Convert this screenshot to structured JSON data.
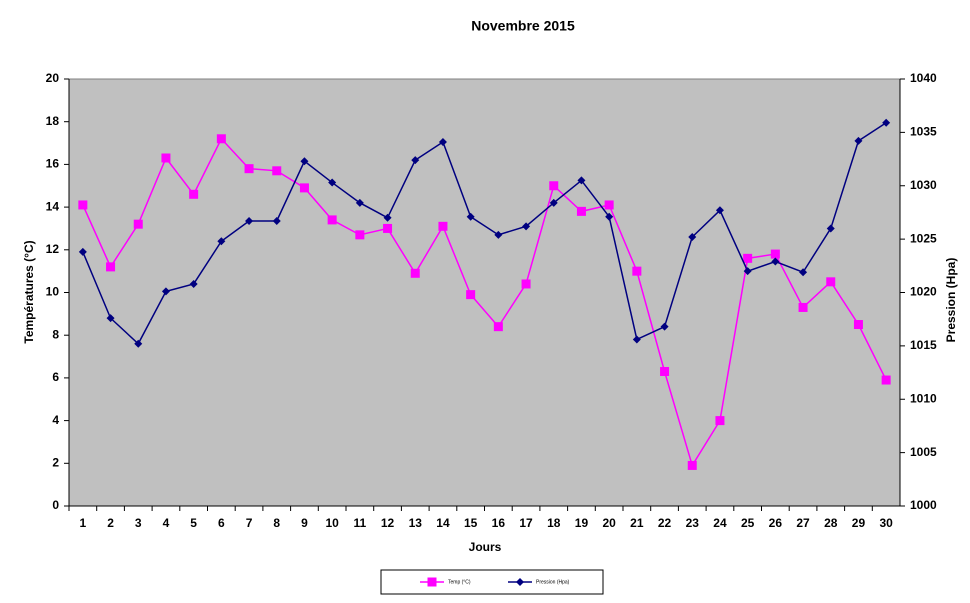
{
  "chart_data": {
    "type": "line",
    "title": "Novembre 2015",
    "x_label": "Jours",
    "y_label": "Températures (°C)",
    "y2_label": "Pression (Hpa)",
    "categories": [
      1,
      2,
      3,
      4,
      5,
      6,
      7,
      8,
      9,
      10,
      11,
      12,
      13,
      14,
      15,
      16,
      17,
      18,
      19,
      20,
      21,
      22,
      23,
      24,
      25,
      26,
      27,
      28,
      29,
      30
    ],
    "ylim": [
      0,
      20
    ],
    "yticks": [
      0,
      2,
      4,
      6,
      8,
      10,
      12,
      14,
      16,
      18,
      20
    ],
    "y2lim": [
      1000,
      1040
    ],
    "y2ticks": [
      1000,
      1005,
      1010,
      1015,
      1020,
      1025,
      1030,
      1035,
      1040
    ],
    "grid": false,
    "legend": "bottom",
    "series": [
      {
        "name": "Temp (°C)",
        "color": "#ff00ff",
        "marker": "square",
        "values": [
          14.1,
          11.2,
          13.2,
          16.3,
          14.6,
          17.2,
          15.8,
          15.7,
          14.9,
          13.4,
          12.7,
          13.0,
          10.9,
          13.1,
          9.9,
          8.4,
          10.4,
          15.0,
          13.8,
          14.1,
          11.0,
          6.3,
          1.9,
          4.0,
          11.6,
          11.8,
          9.3,
          10.5,
          8.5,
          5.9
        ]
      },
      {
        "name": "Pression (Hpa)",
        "color": "#000080",
        "marker": "diamond",
        "axis": "y2",
        "values": [
          1023.8,
          1017.6,
          1015.2,
          1020.1,
          1020.8,
          1024.8,
          1026.7,
          1026.7,
          1032.3,
          1030.3,
          1028.4,
          1027.0,
          1032.4,
          1034.1,
          1027.1,
          1025.4,
          1026.2,
          1028.4,
          1030.5,
          1027.1,
          1015.6,
          1016.8,
          1025.2,
          1027.7,
          1022.0,
          1022.9,
          1021.9,
          1026.0,
          1034.2,
          1035.9
        ]
      }
    ]
  }
}
